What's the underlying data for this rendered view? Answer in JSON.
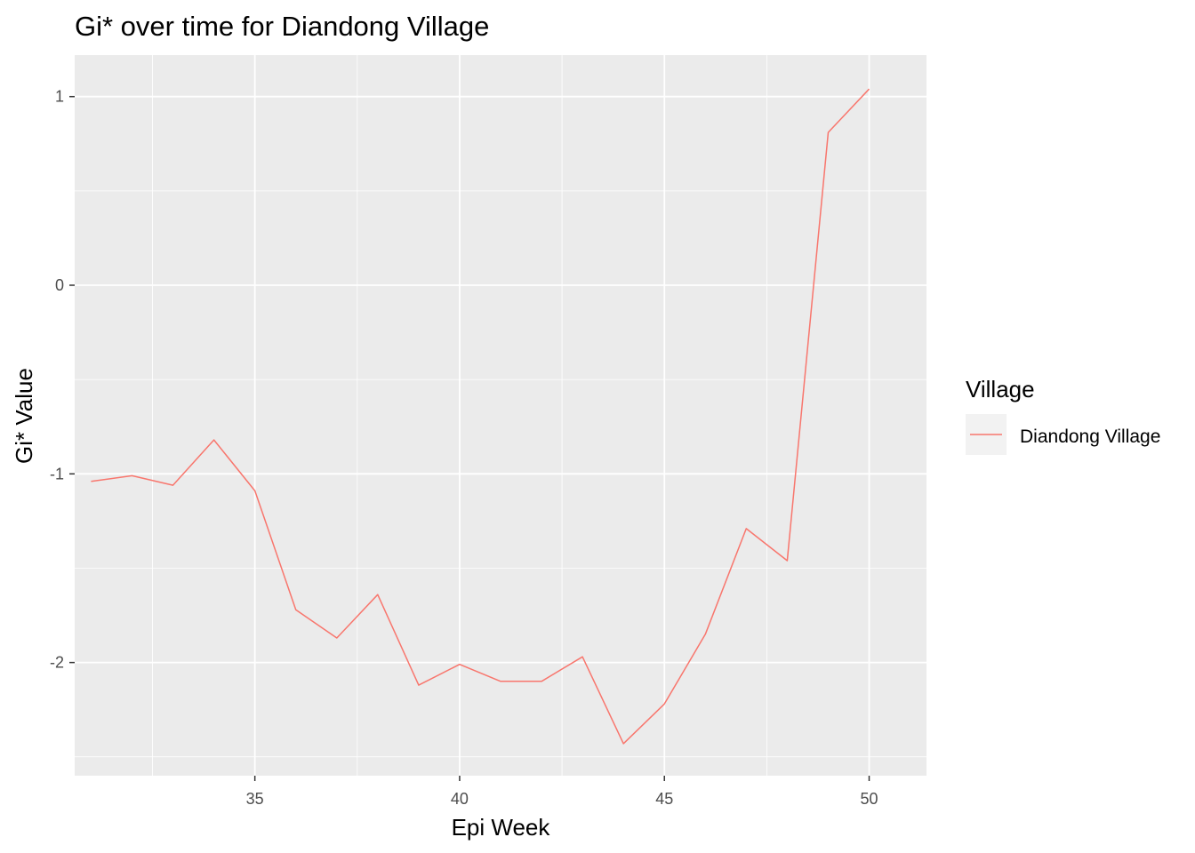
{
  "chart_data": {
    "type": "line",
    "title": "Gi* over time for Diandong Village",
    "xlabel": "Epi Week",
    "ylabel": "Gi* Value",
    "xlim": [
      30.6,
      51.4
    ],
    "ylim": [
      -2.6,
      1.22
    ],
    "x_ticks": [
      35,
      40,
      45,
      50
    ],
    "x_tick_labels": [
      "35",
      "40",
      "45",
      "50"
    ],
    "y_ticks": [
      -2,
      -1,
      0,
      1
    ],
    "y_tick_labels": [
      "-2",
      "-1",
      "0",
      "1"
    ],
    "x_minor_ticks": [
      32.5,
      37.5,
      42.5,
      47.5
    ],
    "y_minor_ticks": [
      -2.5,
      -1.5,
      -0.5,
      0.5
    ],
    "grid": true,
    "legend": {
      "title": "Village",
      "placement": "right"
    },
    "series": [
      {
        "name": "Diandong Village",
        "color": "#F8766D",
        "x": [
          31,
          32,
          33,
          34,
          35,
          36,
          37,
          38,
          39,
          40,
          41,
          42,
          43,
          44,
          45,
          46,
          47,
          48,
          49,
          50
        ],
        "y": [
          -1.04,
          -1.01,
          -1.06,
          -0.82,
          -1.09,
          -1.72,
          -1.87,
          -1.64,
          -2.12,
          -2.01,
          -2.1,
          -2.1,
          -1.97,
          -2.43,
          -2.22,
          -1.85,
          -1.29,
          -1.46,
          0.81,
          1.04
        ]
      }
    ]
  }
}
